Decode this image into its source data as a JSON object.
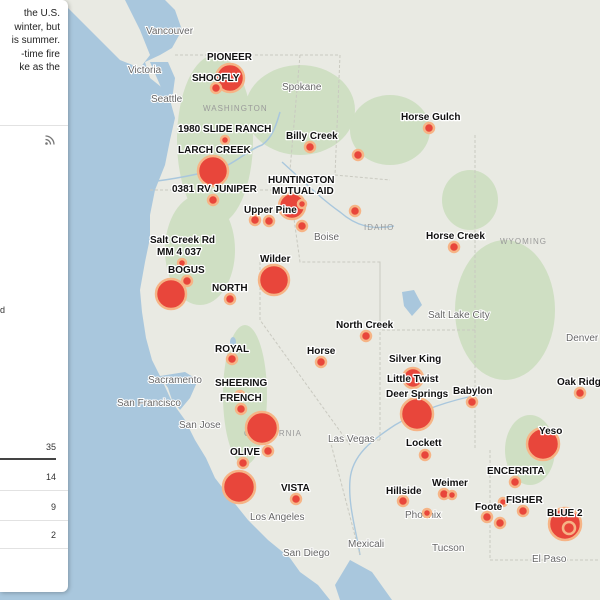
{
  "panel": {
    "intro_lines": [
      "the U.S.",
      "winter, but",
      "is summer.",
      "-time fire",
      "ke as the"
    ],
    "fragment": "d",
    "stats": [
      "35",
      "14",
      "9",
      "2"
    ],
    "rss_icon": "rss-icon"
  },
  "map": {
    "colors": {
      "fire": "#e8463b",
      "fire_ring": "#f6b486",
      "water": "#a9c7dd",
      "land": "#e9eae3",
      "forest": "#cfdfc3"
    },
    "cities": [
      {
        "name": "Vancouver"
      },
      {
        "name": "Victoria"
      },
      {
        "name": "Seattle"
      },
      {
        "name": "Spokane"
      },
      {
        "name": "Boise"
      },
      {
        "name": "Salt Lake City"
      },
      {
        "name": "Denver"
      },
      {
        "name": "Sacramento"
      },
      {
        "name": "San Francisco"
      },
      {
        "name": "San Jose"
      },
      {
        "name": "Las Vegas"
      },
      {
        "name": "Los Angeles"
      },
      {
        "name": "Phoenix"
      },
      {
        "name": "San Diego"
      },
      {
        "name": "Mexicali"
      },
      {
        "name": "Tucson"
      },
      {
        "name": "El Paso"
      }
    ],
    "states": [
      {
        "name": "WASHINGTON"
      },
      {
        "name": "IDAHO"
      },
      {
        "name": "WYOMING"
      },
      {
        "name": "CALIFORNIA"
      }
    ],
    "fires": [
      {
        "name": "PIONEER"
      },
      {
        "name": "SHOOFLY"
      },
      {
        "name": "1980 SLIDE RANCH"
      },
      {
        "name": "Billy Creek"
      },
      {
        "name": "Horse Gulch"
      },
      {
        "name": "LARCH CREEK"
      },
      {
        "name": "0381 RV JUNIPER"
      },
      {
        "name": "HUNTINGTON MUTUAL AID"
      },
      {
        "name": "Upper Pine"
      },
      {
        "name": "Salt Creek Rd MM 4 037"
      },
      {
        "name": "BOGUS"
      },
      {
        "name": "Wilder"
      },
      {
        "name": "NORTH"
      },
      {
        "name": "Horse Creek"
      },
      {
        "name": "North Creek"
      },
      {
        "name": "ROYAL"
      },
      {
        "name": "Horse"
      },
      {
        "name": "Silver King"
      },
      {
        "name": "Little Twist"
      },
      {
        "name": "Deer Springs"
      },
      {
        "name": "Babylon"
      },
      {
        "name": "Oak Ridge"
      },
      {
        "name": "SHEERING"
      },
      {
        "name": "FRENCH"
      },
      {
        "name": "Yeso"
      },
      {
        "name": "Lockett"
      },
      {
        "name": "OLIVE"
      },
      {
        "name": "ENCERRITA"
      },
      {
        "name": "Weimer"
      },
      {
        "name": "VISTA"
      },
      {
        "name": "Hillside"
      },
      {
        "name": "FISHER"
      },
      {
        "name": "Foote"
      },
      {
        "name": "BLUE 2"
      }
    ]
  }
}
